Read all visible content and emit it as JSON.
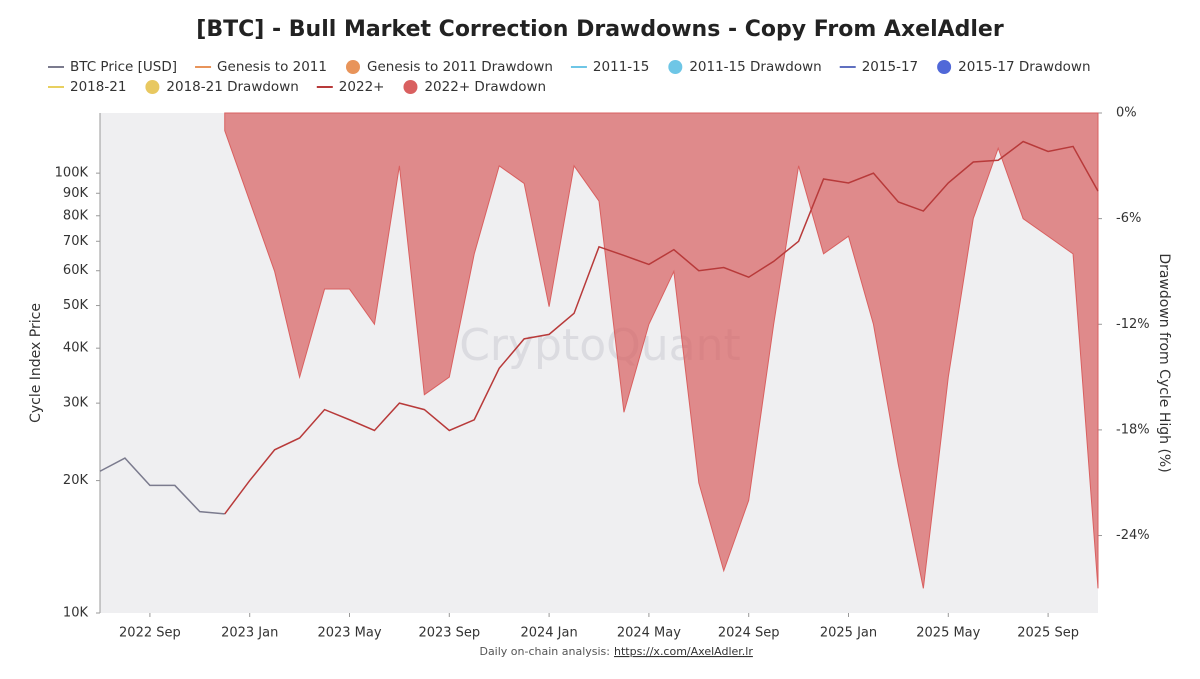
{
  "chart_data": {
    "type": "line-drawdown",
    "title": "[BTC] - Bull Market Correction Drawdowns - Copy From AxelAdler",
    "y_label": "Cycle Index Price",
    "y2_label": "Drawdown from Cycle High (%)",
    "watermark": "CryptoQuant",
    "footer": "Daily on-chain analysis:",
    "footer_link": "https://x.com/AxelAdler.lr",
    "log_y": true,
    "x": [
      "2022-07",
      "2022-08",
      "2022-09",
      "2022-10",
      "2022-11",
      "2022-12",
      "2023-01",
      "2023-02",
      "2023-03",
      "2023-04",
      "2023-05",
      "2023-06",
      "2023-07",
      "2023-08",
      "2023-09",
      "2023-10",
      "2023-11",
      "2023-12",
      "2024-01",
      "2024-02",
      "2024-03",
      "2024-04",
      "2024-05",
      "2024-06",
      "2024-07",
      "2024-08",
      "2024-09",
      "2024-10",
      "2024-11",
      "2024-12",
      "2025-01",
      "2025-02",
      "2025-03",
      "2025-04",
      "2025-05",
      "2025-06",
      "2025-07",
      "2025-08",
      "2025-09",
      "2025-10",
      "2025-11"
    ],
    "xlim": [
      "2022-07",
      "2025-11"
    ],
    "xticks": [
      {
        "value": "2022-09",
        "label": "2022 Sep"
      },
      {
        "value": "2023-01",
        "label": "2023 Jan"
      },
      {
        "value": "2023-05",
        "label": "2023 May"
      },
      {
        "value": "2023-09",
        "label": "2023 Sep"
      },
      {
        "value": "2024-01",
        "label": "2024 Jan"
      },
      {
        "value": "2024-05",
        "label": "2024 May"
      },
      {
        "value": "2024-09",
        "label": "2024 Sep"
      },
      {
        "value": "2025-01",
        "label": "2025 Jan"
      },
      {
        "value": "2025-05",
        "label": "2025 May"
      },
      {
        "value": "2025-09",
        "label": "2025 Sep"
      }
    ],
    "ylim": [
      10000,
      137000
    ],
    "yticks": [
      {
        "value": 10000,
        "label": "10K"
      },
      {
        "value": 20000,
        "label": "20K"
      },
      {
        "value": 30000,
        "label": "30K"
      },
      {
        "value": 40000,
        "label": "40K"
      },
      {
        "value": 50000,
        "label": "50K"
      },
      {
        "value": 60000,
        "label": "60K"
      },
      {
        "value": 70000,
        "label": "70K"
      },
      {
        "value": 80000,
        "label": "80K"
      },
      {
        "value": 90000,
        "label": "90K"
      },
      {
        "value": 100000,
        "label": "100K"
      }
    ],
    "y2lim": [
      -28.4,
      0
    ],
    "y2ticks": [
      {
        "value": 0,
        "label": "0%"
      },
      {
        "value": -6,
        "label": "-6%"
      },
      {
        "value": -12,
        "label": "-12%"
      },
      {
        "value": -18,
        "label": "-18%"
      },
      {
        "value": -24,
        "label": "-24%"
      }
    ],
    "series": [
      {
        "name": "BTC Price [USD]",
        "kind": "line",
        "color": "#7b7b8e",
        "values": [
          21000,
          22500,
          19500,
          19500,
          17000,
          16800,
          null,
          null,
          null,
          null,
          null,
          null,
          null,
          null,
          null,
          null,
          null,
          null,
          null,
          null,
          null,
          null,
          null,
          null,
          null,
          null,
          null,
          null,
          null,
          null,
          null,
          null,
          null,
          null,
          null,
          null,
          null,
          null,
          null,
          null,
          null
        ]
      },
      {
        "name": "Genesis to 2011",
        "kind": "line",
        "color": "#e8945a",
        "values": [
          null,
          null,
          null,
          null,
          null,
          null,
          null,
          null,
          null,
          null,
          null,
          null,
          null,
          null,
          null,
          null,
          null,
          null,
          null,
          null,
          null,
          null,
          null,
          null,
          null,
          null,
          null,
          null,
          null,
          null,
          null,
          null,
          null,
          null,
          null,
          null,
          null,
          null,
          null,
          null,
          null
        ]
      },
      {
        "name": "Genesis to 2011 Drawdown",
        "kind": "area",
        "axis": "y2",
        "color": "#e8945a",
        "values": [
          null,
          null,
          null,
          null,
          null,
          null,
          null,
          null,
          null,
          null,
          null,
          null,
          null,
          null,
          null,
          null,
          null,
          null,
          null,
          null,
          null,
          null,
          null,
          null,
          null,
          null,
          null,
          null,
          null,
          null,
          null,
          null,
          null,
          null,
          null,
          null,
          null,
          null,
          null,
          null,
          null
        ]
      },
      {
        "name": "2011-15",
        "kind": "line",
        "color": "#6ec6e6",
        "values": [
          null,
          null,
          null,
          null,
          null,
          null,
          null,
          null,
          null,
          null,
          null,
          null,
          null,
          null,
          null,
          null,
          null,
          null,
          null,
          null,
          null,
          null,
          null,
          null,
          null,
          null,
          null,
          null,
          null,
          null,
          null,
          null,
          null,
          null,
          null,
          null,
          null,
          null,
          null,
          null,
          null
        ]
      },
      {
        "name": "2011-15 Drawdown",
        "kind": "area",
        "axis": "y2",
        "color": "#6ec6e6",
        "values": [
          null,
          null,
          null,
          null,
          null,
          null,
          null,
          null,
          null,
          null,
          null,
          null,
          null,
          null,
          null,
          null,
          null,
          null,
          null,
          null,
          null,
          null,
          null,
          null,
          null,
          null,
          null,
          null,
          null,
          null,
          null,
          null,
          null,
          null,
          null,
          null,
          null,
          null,
          null,
          null,
          null
        ]
      },
      {
        "name": "2015-17",
        "kind": "line",
        "color": "#6070c0",
        "values": [
          null,
          null,
          null,
          null,
          null,
          null,
          null,
          null,
          null,
          null,
          null,
          null,
          null,
          null,
          null,
          null,
          null,
          null,
          null,
          null,
          null,
          null,
          null,
          null,
          null,
          null,
          null,
          null,
          null,
          null,
          null,
          null,
          null,
          null,
          null,
          null,
          null,
          null,
          null,
          null,
          null
        ]
      },
      {
        "name": "2015-17 Drawdown",
        "kind": "area",
        "axis": "y2",
        "color": "#5068d8",
        "values": [
          null,
          null,
          null,
          null,
          null,
          null,
          null,
          null,
          null,
          null,
          null,
          null,
          null,
          null,
          null,
          null,
          null,
          null,
          null,
          null,
          null,
          null,
          null,
          null,
          null,
          null,
          null,
          null,
          null,
          null,
          null,
          null,
          null,
          null,
          null,
          null,
          null,
          null,
          null,
          null,
          null
        ]
      },
      {
        "name": "2018-21",
        "kind": "line",
        "color": "#e8d060",
        "values": [
          null,
          null,
          null,
          null,
          null,
          null,
          null,
          null,
          null,
          null,
          null,
          null,
          null,
          null,
          null,
          null,
          null,
          null,
          null,
          null,
          null,
          null,
          null,
          null,
          null,
          null,
          null,
          null,
          null,
          null,
          null,
          null,
          null,
          null,
          null,
          null,
          null,
          null,
          null,
          null,
          null
        ]
      },
      {
        "name": "2018-21 Drawdown",
        "kind": "area",
        "axis": "y2",
        "color": "#e8c860",
        "values": [
          null,
          null,
          null,
          null,
          null,
          null,
          null,
          null,
          null,
          null,
          null,
          null,
          null,
          null,
          null,
          null,
          null,
          null,
          null,
          null,
          null,
          null,
          null,
          null,
          null,
          null,
          null,
          null,
          null,
          null,
          null,
          null,
          null,
          null,
          null,
          null,
          null,
          null,
          null,
          null,
          null
        ]
      },
      {
        "name": "2022+",
        "kind": "line",
        "color": "#b83a3a",
        "values": [
          null,
          null,
          null,
          null,
          null,
          16800,
          20000,
          23500,
          25000,
          29000,
          27500,
          26000,
          30000,
          29000,
          26000,
          27500,
          36000,
          42000,
          43000,
          48000,
          68000,
          65000,
          62000,
          67000,
          60000,
          61000,
          58000,
          63000,
          70000,
          97000,
          95000,
          100000,
          86000,
          82000,
          95000,
          106000,
          107000,
          118000,
          112000,
          115000,
          91000
        ]
      },
      {
        "name": "2022+ Drawdown",
        "kind": "area",
        "axis": "y2",
        "color": "#d96060",
        "values": [
          null,
          null,
          null,
          null,
          null,
          -1,
          -5,
          -9,
          -15,
          -10,
          -10,
          -12,
          -3,
          -16,
          -15,
          -8,
          -3,
          -4,
          -11,
          -3,
          -5,
          -17,
          -12,
          -9,
          -21,
          -26,
          -22,
          -12,
          -3,
          -8,
          -7,
          -12,
          -20,
          -27,
          -15,
          -6,
          -2,
          -6,
          -7,
          -8,
          -27
        ]
      }
    ]
  }
}
